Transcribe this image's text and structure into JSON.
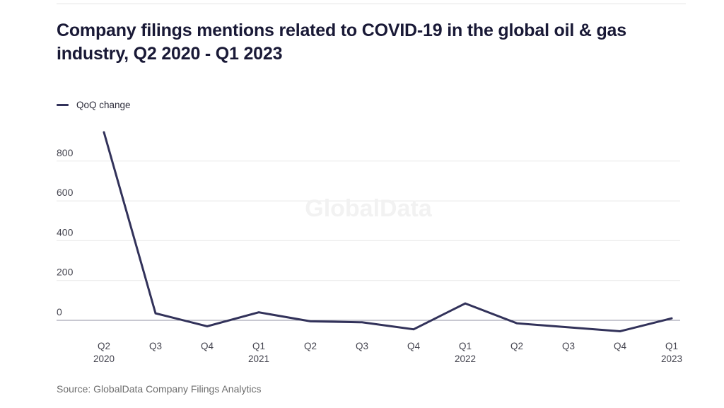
{
  "page": {
    "title": "Company filings mentions related to COVID-19 in the global oil & gas industry, Q2 2020 - Q1 2023",
    "source": "Source: GlobalData Company Filings Analytics",
    "watermark": "GlobalData"
  },
  "legend": {
    "label": "QoQ change"
  },
  "colors": {
    "line": "#32325a",
    "title": "#191936",
    "grid": "#e8e8e8",
    "zero_line": "#9191a3",
    "axis_label": "#44444f",
    "watermark": "#f2f2f2",
    "source": "#6d6d6d",
    "top_rule": "#e5e5e5"
  },
  "chart_data": {
    "type": "line",
    "title": "Company filings mentions related to COVID-19 in the global oil & gas industry, Q2 2020 - Q1 2023",
    "xlabel": "",
    "ylabel": "",
    "grid": "horizontal",
    "legend_position": "top-left",
    "categories": [
      "Q2 2020",
      "Q3 2020",
      "Q4 2020",
      "Q1 2021",
      "Q2 2021",
      "Q3 2021",
      "Q4 2021",
      "Q1 2022",
      "Q2 2022",
      "Q3 2022",
      "Q4 2022",
      "Q1 2023"
    ],
    "x_ticks": [
      {
        "quarter": "Q2",
        "year": "2020"
      },
      {
        "quarter": "Q3",
        "year": ""
      },
      {
        "quarter": "Q4",
        "year": ""
      },
      {
        "quarter": "Q1",
        "year": "2021"
      },
      {
        "quarter": "Q2",
        "year": ""
      },
      {
        "quarter": "Q3",
        "year": ""
      },
      {
        "quarter": "Q4",
        "year": ""
      },
      {
        "quarter": "Q1",
        "year": "2022"
      },
      {
        "quarter": "Q2",
        "year": ""
      },
      {
        "quarter": "Q3",
        "year": ""
      },
      {
        "quarter": "Q4",
        "year": ""
      },
      {
        "quarter": "Q1",
        "year": "2023"
      }
    ],
    "series": [
      {
        "name": "QoQ change",
        "values": [
          945,
          35,
          -30,
          40,
          -5,
          -10,
          -45,
          85,
          -15,
          -35,
          -55,
          10
        ]
      }
    ],
    "y_ticks": [
      800,
      600,
      400,
      200,
      0
    ],
    "ylim": [
      -100,
      1000
    ]
  }
}
